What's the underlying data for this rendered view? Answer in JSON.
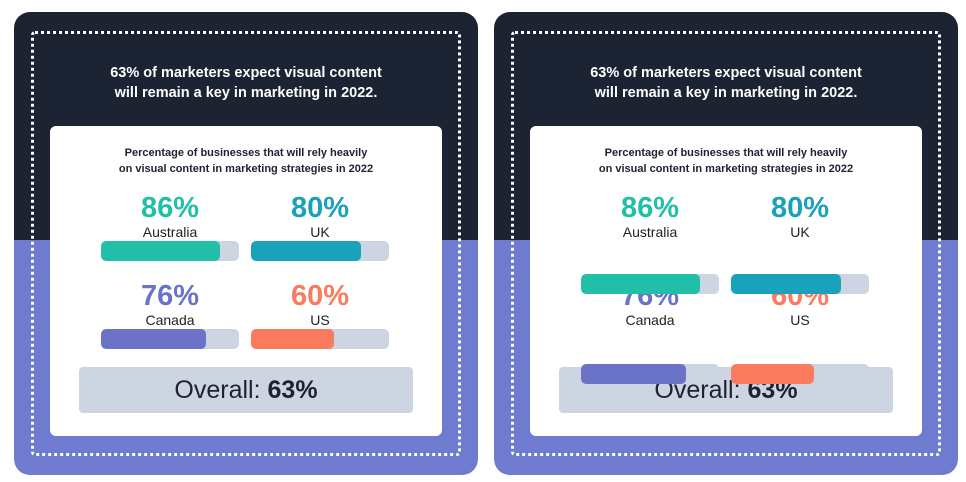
{
  "cards": [
    {
      "headline_line1": "63% of marketers expect visual content",
      "headline_line2": "will remain a key in marketing in 2022.",
      "subtitle_line1": "Percentage of businesses that will rely heavily",
      "subtitle_line2": "on visual content in marketing strategies in 2022",
      "overall_label": "Overall:",
      "overall_value": "63%"
    },
    {
      "headline_line1": "63% of marketers expect visual content",
      "headline_line2": "will remain a key in marketing in 2022.",
      "subtitle_line1": "Percentage of businesses that will rely heavily",
      "subtitle_line2": "on visual content in marketing strategies in 2022",
      "overall_label": "Overall:",
      "overall_value": "63%"
    }
  ],
  "chart_data": {
    "type": "bar",
    "title": "Percentage of businesses that will rely heavily on visual content in marketing strategies in 2022",
    "categories": [
      "Australia",
      "UK",
      "Canada",
      "US"
    ],
    "values": [
      86,
      80,
      76,
      60
    ],
    "value_labels": [
      "86%",
      "80%",
      "76%",
      "60%"
    ],
    "ylim": [
      0,
      100
    ],
    "overall": 63,
    "colors": {
      "Australia": "#22bfa8",
      "UK": "#1aa1bb",
      "Canada": "#6b73c9",
      "US": "#fb7b5e",
      "track": "#cdd5e3"
    }
  }
}
